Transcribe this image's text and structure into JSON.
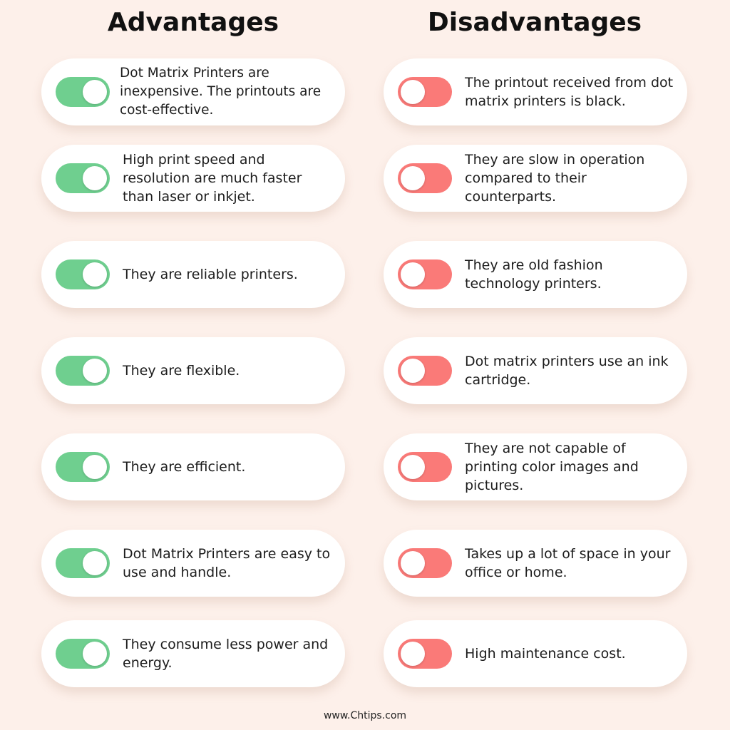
{
  "headings": {
    "advantages": "Advantages",
    "disadvantages": "Disadvantages"
  },
  "advantages": [
    {
      "text": "Dot Matrix Printers are inexpensive. The printouts are cost-effective.",
      "toggle": "on"
    },
    {
      "text": "High print speed and resolution are much faster than laser or inkjet.",
      "toggle": "on"
    },
    {
      "text": "They are reliable printers.",
      "toggle": "on"
    },
    {
      "text": "They are flexible.",
      "toggle": "on"
    },
    {
      "text": "They are efficient.",
      "toggle": "on"
    },
    {
      "text": "Dot Matrix Printers are easy to use and handle.",
      "toggle": "on"
    },
    {
      "text": "They consume less power and energy.",
      "toggle": "on"
    }
  ],
  "disadvantages": [
    {
      "text": "The printout received from dot matrix printers is black.",
      "toggle": "off"
    },
    {
      "text": "They are slow in operation compared to their counterparts.",
      "toggle": "off"
    },
    {
      "text": "They are old fashion technology printers.",
      "toggle": "off"
    },
    {
      "text": "Dot matrix printers use an ink cartridge.",
      "toggle": "off"
    },
    {
      "text": "They are not capable of printing color images and pictures.",
      "toggle": "off"
    },
    {
      "text": "Takes up a lot of space in your office or home.",
      "toggle": "off"
    },
    {
      "text": "High maintenance cost.",
      "toggle": "off"
    }
  ],
  "colors": {
    "background": "#fdf0ea",
    "toggle_on": "#6fcf8f",
    "toggle_off": "#fa7a78",
    "card": "#ffffff"
  },
  "footer": "www.Chtips.com"
}
